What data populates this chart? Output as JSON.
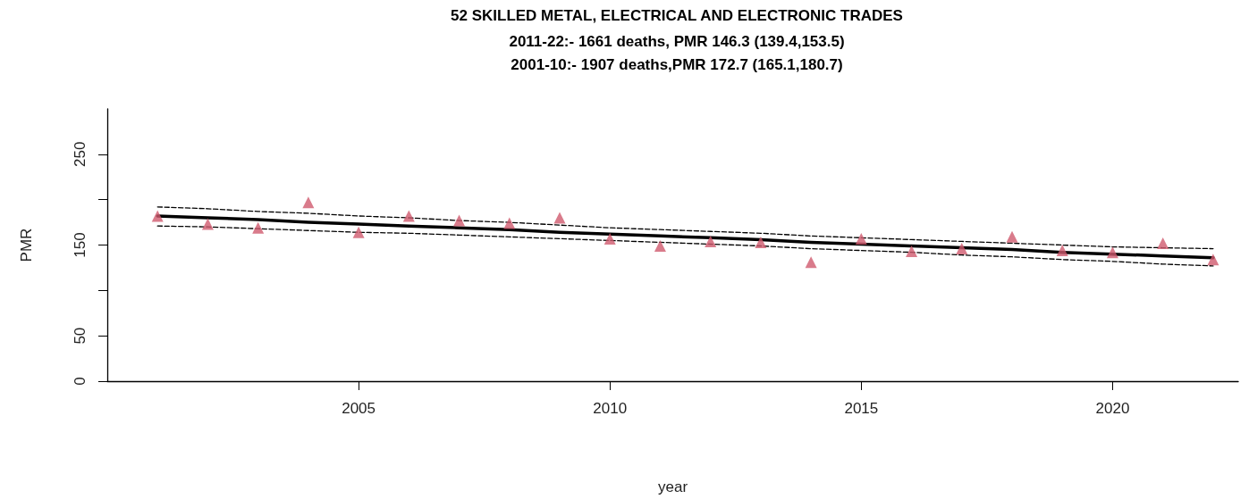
{
  "chart_data": {
    "type": "scatter",
    "title": "52 SKILLED METAL, ELECTRICAL AND ELECTRONIC TRADES",
    "subtitle": "2011-22:- 1661 deaths, PMR 146.3 (139.4,153.5)\n2001-10:- 1907 deaths,PMR 172.7 (165.1,180.7)",
    "xlabel": "year",
    "ylabel": "PMR",
    "x": [
      2001,
      2002,
      2003,
      2004,
      2005,
      2006,
      2007,
      2008,
      2009,
      2010,
      2011,
      2012,
      2013,
      2014,
      2015,
      2016,
      2017,
      2018,
      2019,
      2020,
      2021,
      2022
    ],
    "series": [
      {
        "type": "line",
        "color": "#000000",
        "marker": "none",
        "line_style": "solid",
        "values": [
          182,
          180,
          178,
          175,
          173,
          171,
          169,
          167,
          164,
          162,
          160,
          158,
          156,
          153,
          151,
          149,
          147,
          145,
          142,
          140,
          138,
          136
        ]
      },
      {
        "type": "line",
        "color": "#000000",
        "marker": "none",
        "line_style": "dashed",
        "values": [
          192,
          190,
          187,
          185,
          182,
          180,
          177,
          175,
          172,
          169,
          167,
          165,
          163,
          160,
          158,
          156,
          154,
          152,
          150,
          148,
          147,
          146
        ]
      },
      {
        "type": "line",
        "color": "#000000",
        "marker": "none",
        "line_style": "dashed",
        "values": [
          171,
          170,
          168,
          166,
          164,
          163,
          161,
          159,
          157,
          155,
          153,
          151,
          149,
          146,
          144,
          142,
          139,
          137,
          134,
          132,
          129,
          127
        ]
      },
      {
        "color": "#d05a6e",
        "marker": "triangle",
        "values": [
          182,
          173,
          169,
          197,
          164,
          182,
          177,
          174,
          180,
          157,
          149,
          154,
          153,
          131,
          157,
          143,
          146,
          159,
          144,
          142,
          152,
          134
        ]
      }
    ],
    "xlim": [
      2000,
      2022.5
    ],
    "xticks": [
      2005,
      2010,
      2015,
      2020
    ],
    "ylim": [
      0,
      300
    ],
    "yticks": [
      0,
      50,
      {
        "value": 100,
        "label": null
      },
      150,
      {
        "value": 200,
        "label": null
      },
      250
    ],
    "grid": false
  }
}
